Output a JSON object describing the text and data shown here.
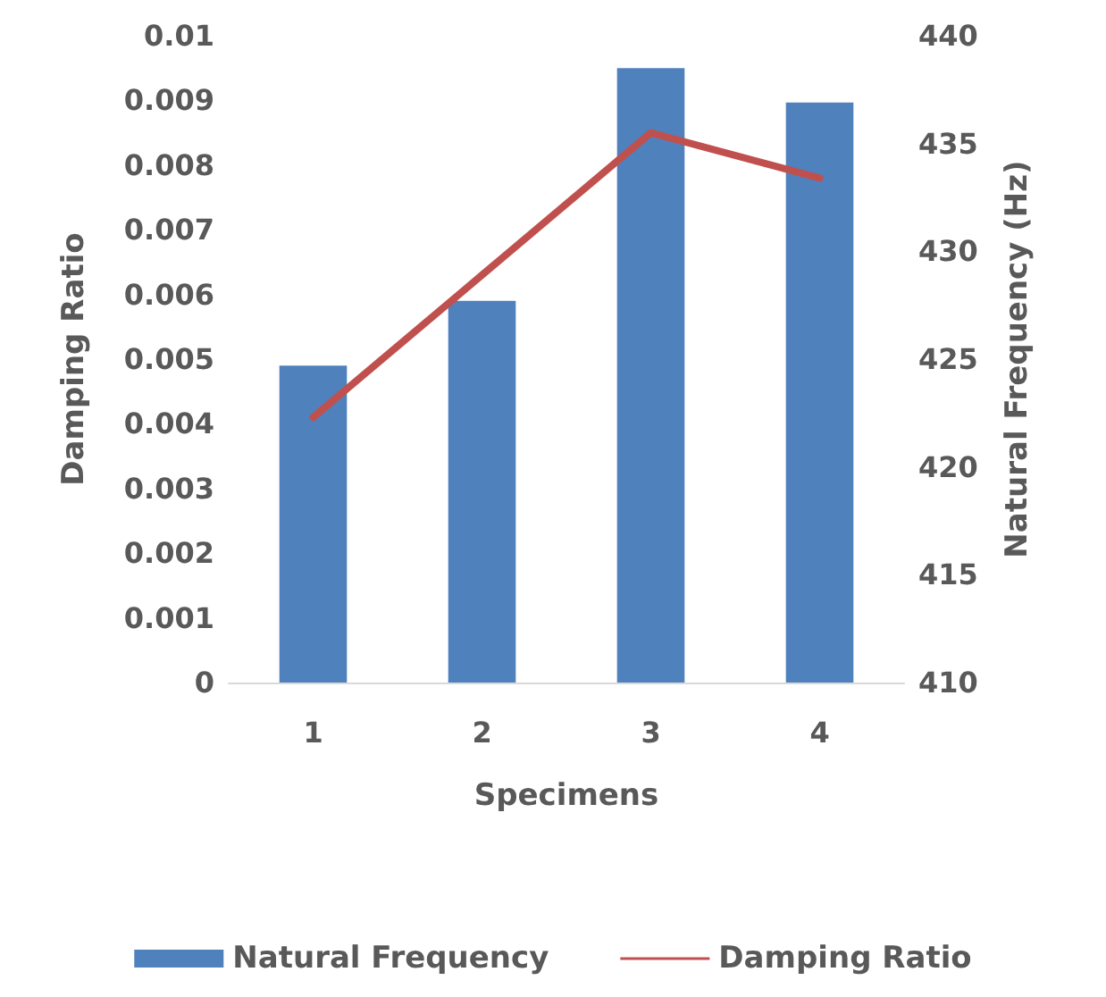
{
  "chart_data": {
    "type": "bar",
    "xlabel": "Specimens",
    "ylabel": "Damping Ratio",
    "y2label": "Natural Frequency (Hz)",
    "categories": [
      "1",
      "2",
      "3",
      "4"
    ],
    "series": [
      {
        "name": "Natural Frequency",
        "axis": "y2",
        "color": "#4f81bd",
        "values": [
          424.7,
          427.7,
          438.5,
          436.9
        ]
      },
      {
        "name": "Damping Ratio",
        "type": "line",
        "color": "#c0504d",
        "values": [
          0.0041,
          0.0063,
          0.0085,
          0.0078
        ]
      }
    ],
    "ylim": [
      0,
      0.01
    ],
    "yticks": [
      0,
      0.001,
      0.002,
      0.003,
      0.004,
      0.005,
      0.006,
      0.007,
      0.008,
      0.009,
      0.01
    ],
    "y2lim": [
      410,
      440
    ],
    "y2ticks": [
      410,
      415,
      420,
      425,
      430,
      435,
      440
    ],
    "grid": false,
    "legend": "bottom",
    "marker": "none",
    "line_style": "solid"
  }
}
